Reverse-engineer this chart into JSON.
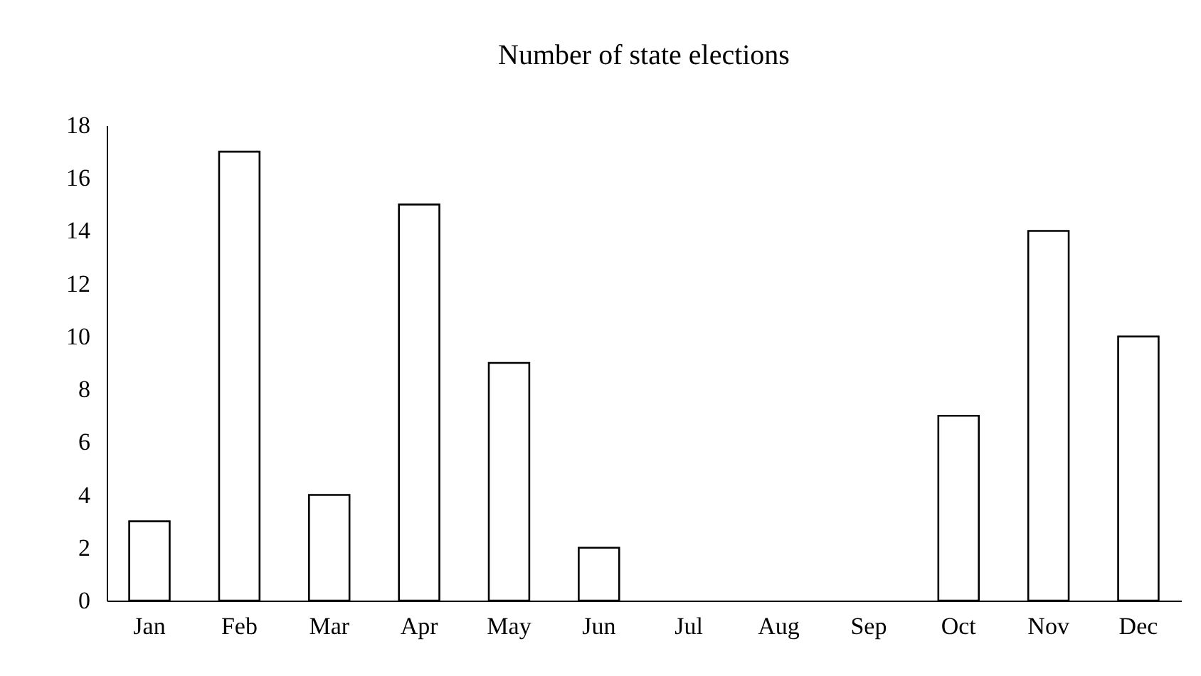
{
  "chart_data": {
    "type": "bar",
    "title": "Number of state elections",
    "categories": [
      "Jan",
      "Feb",
      "Mar",
      "Apr",
      "May",
      "Jun",
      "Jul",
      "Aug",
      "Sep",
      "Oct",
      "Nov",
      "Dec"
    ],
    "values": [
      3,
      17,
      4,
      15,
      9,
      2,
      0,
      0,
      0,
      7,
      14,
      10
    ],
    "color": "#ffffff",
    "ylim": [
      0,
      18
    ],
    "yticks": [
      0,
      2,
      4,
      6,
      8,
      10,
      12,
      14,
      16,
      18
    ]
  }
}
